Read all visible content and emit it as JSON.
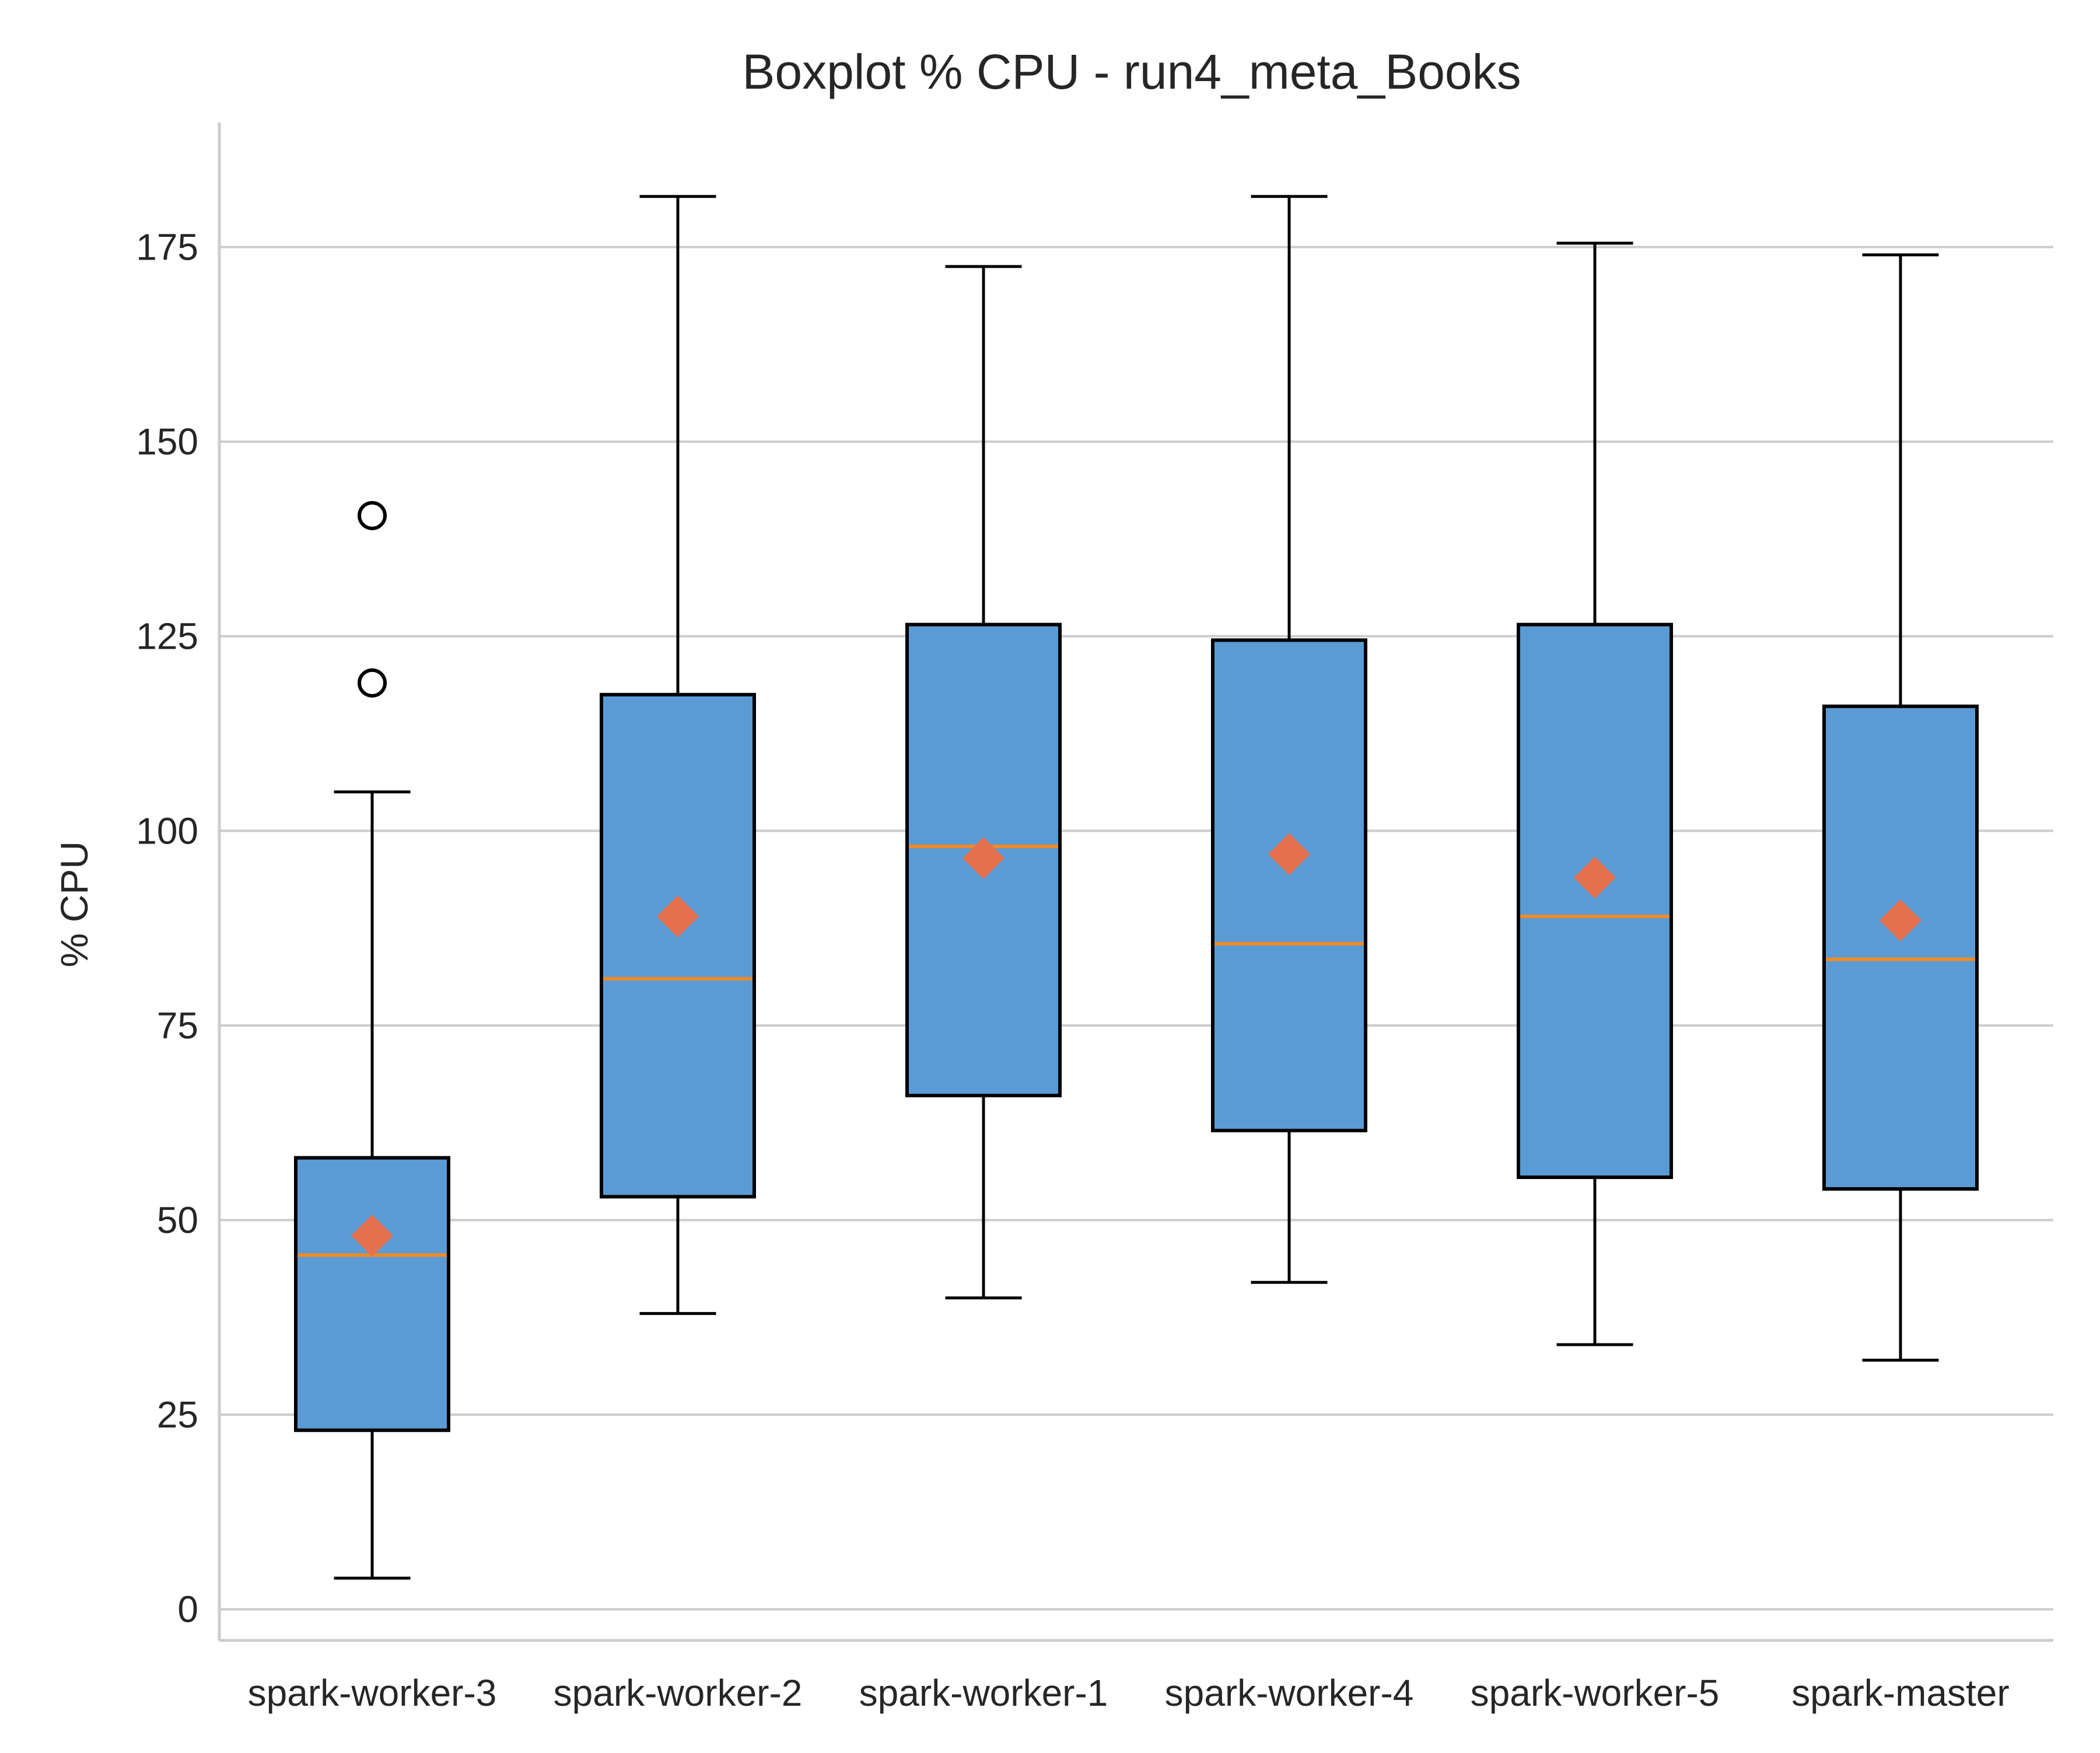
{
  "chart_data": {
    "type": "boxplot",
    "title": "Boxplot % CPU - run4_meta_Books",
    "xlabel": "",
    "ylabel": "% CPU",
    "ylim": [
      -4,
      191
    ],
    "yticks": [
      0,
      25,
      50,
      75,
      100,
      125,
      150,
      175
    ],
    "grid": "horizontal",
    "categories": [
      "spark-worker-3",
      "spark-worker-2",
      "spark-worker-1",
      "spark-worker-4",
      "spark-worker-5",
      "spark-master"
    ],
    "boxes": [
      {
        "category": "spark-worker-3",
        "whisker_low": 4,
        "q1": 23,
        "median": 45.5,
        "q3": 58,
        "whisker_high": 105,
        "mean": 48,
        "outliers": [
          119,
          140.5
        ]
      },
      {
        "category": "spark-worker-2",
        "whisker_low": 38,
        "q1": 53,
        "median": 81,
        "q3": 117.5,
        "whisker_high": 181.5,
        "mean": 89,
        "outliers": []
      },
      {
        "category": "spark-worker-1",
        "whisker_low": 40,
        "q1": 66,
        "median": 98,
        "q3": 126.5,
        "whisker_high": 172.5,
        "mean": 96.5,
        "outliers": []
      },
      {
        "category": "spark-worker-4",
        "whisker_low": 42,
        "q1": 61.5,
        "median": 85.5,
        "q3": 124.5,
        "whisker_high": 181.5,
        "mean": 97,
        "outliers": []
      },
      {
        "category": "spark-worker-5",
        "whisker_low": 34,
        "q1": 55.5,
        "median": 89,
        "q3": 126.5,
        "whisker_high": 175.5,
        "mean": 94,
        "outliers": []
      },
      {
        "category": "spark-master",
        "whisker_low": 32,
        "q1": 54,
        "median": 83.5,
        "q3": 116,
        "whisker_high": 174,
        "mean": 88.5,
        "outliers": []
      }
    ],
    "colors": {
      "box_fill": "#5b9bd5",
      "box_edge": "#000000",
      "median": "#f08a24",
      "mean_marker": "#e4704e",
      "grid": "#cccccc",
      "axis": "#cccccc"
    }
  }
}
